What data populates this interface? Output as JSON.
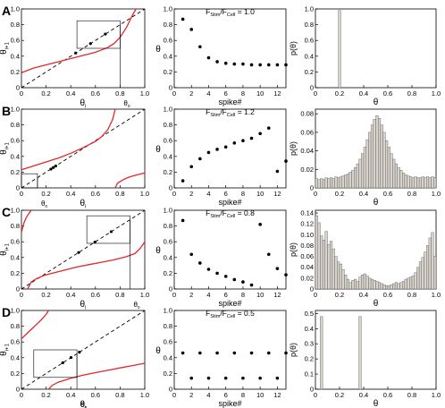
{
  "figure": {
    "rows": [
      {
        "letter": "A",
        "param": "F",
        "param_sub1": "Stim",
        "param_mid": "/F",
        "param_sub2": "Cell",
        "param_value": " = 1.0"
      },
      {
        "letter": "B",
        "param": "F",
        "param_sub1": "Stim",
        "param_mid": "/F",
        "param_sub2": "Cell",
        "param_value": " = 1.2"
      },
      {
        "letter": "C",
        "param": "F",
        "param_sub1": "Stim",
        "param_mid": "/F",
        "param_sub2": "Cell",
        "param_value": " = 0.8"
      },
      {
        "letter": "D",
        "param": "F",
        "param_sub1": "Stim",
        "param_mid": "/F",
        "param_sub2": "Cell",
        "param_value": " = 0.5"
      }
    ],
    "colors": {
      "curve": "#e3262d",
      "bar_fill": "#d8d3cb",
      "axis": "#000000"
    }
  },
  "chart_data": [
    {
      "type": "line",
      "panel": "A-map",
      "ylabel": "θ",
      "ylabel_sub": "i+1",
      "xlabel": "θ",
      "xlabel_sub": "i",
      "xlim": [
        0,
        1
      ],
      "ylim": [
        0,
        1
      ],
      "xticks": [
        "0",
        "0.2",
        "0.4",
        "0.6",
        "0.8",
        "1.0"
      ],
      "yticks": [
        "0",
        "0.2",
        "0.4",
        "0.6",
        "0.8",
        "1.0"
      ],
      "fixed_point_label": "θ",
      "fixed_point_sub": "0",
      "fixed_point": 0.8,
      "curve": {
        "x": [
          0,
          0.05,
          0.1,
          0.15,
          0.2,
          0.25,
          0.3,
          0.35,
          0.4,
          0.45,
          0.5,
          0.55,
          0.6,
          0.65,
          0.7,
          0.75,
          0.8,
          0.85,
          0.9,
          0.93
        ],
        "y": [
          0.19,
          0.22,
          0.25,
          0.27,
          0.29,
          0.31,
          0.33,
          0.35,
          0.37,
          0.39,
          0.41,
          0.43,
          0.45,
          0.48,
          0.51,
          0.56,
          0.64,
          0.76,
          0.92,
          1.0
        ]
      },
      "diagonal": true
    },
    {
      "type": "scatter",
      "panel": "A-series",
      "ylabel": "θ",
      "xlabel": "spike#",
      "xlim": [
        0,
        13
      ],
      "ylim": [
        0,
        1
      ],
      "xticks": [
        "0",
        "2",
        "4",
        "6",
        "8",
        "10",
        "12"
      ],
      "yticks": [
        "0",
        "0.2",
        "0.4",
        "0.6",
        "0.8",
        "1.0"
      ],
      "x": [
        1,
        2,
        3,
        4,
        5,
        6,
        7,
        8,
        9,
        10,
        11,
        12,
        13
      ],
      "y": [
        0.87,
        0.74,
        0.52,
        0.38,
        0.33,
        0.31,
        0.3,
        0.3,
        0.29,
        0.29,
        0.29,
        0.29,
        0.29
      ]
    },
    {
      "type": "bar",
      "panel": "A-hist",
      "ylabel": "p(θ)",
      "xlabel": "θ",
      "xlim": [
        0,
        1
      ],
      "ylim": [
        0,
        1
      ],
      "xticks": [
        "0",
        "0.2",
        "0.4",
        "0.6",
        "0.8",
        "1.0"
      ],
      "yticks": [
        "0",
        "0.2",
        "0.4",
        "0.6",
        "0.8",
        "1.0"
      ],
      "bin_width": 0.02,
      "bins_x": [
        0.2
      ],
      "values": [
        0.98
      ]
    },
    {
      "type": "line",
      "panel": "B-map",
      "ylabel": "θ",
      "ylabel_sub": "i+1",
      "xlabel": "θ",
      "xlabel_sub": "i",
      "xlim": [
        0,
        1
      ],
      "ylim": [
        0,
        1
      ],
      "xticks": [
        "0",
        "0.2",
        "0.4",
        "0.6",
        "0.8",
        "1.0"
      ],
      "yticks": [
        "0",
        "0.2",
        "0.4",
        "0.6",
        "0.8",
        "1.0"
      ],
      "fixed_point_label": "θ",
      "fixed_point_sub": "0",
      "fixed_point": 0.13,
      "curve": {
        "x": [
          0,
          0.1,
          0.2,
          0.3,
          0.4,
          0.5,
          0.6,
          0.65,
          0.7,
          0.74,
          0.76
        ],
        "y": [
          0.23,
          0.28,
          0.33,
          0.38,
          0.44,
          0.51,
          0.59,
          0.65,
          0.74,
          0.87,
          1.0
        ]
      },
      "curve2": {
        "x": [
          0.76,
          0.78,
          0.82,
          0.86,
          0.9,
          0.95,
          1.0
        ],
        "y": [
          0.0,
          0.06,
          0.1,
          0.13,
          0.15,
          0.17,
          0.19
        ]
      },
      "diagonal": true
    },
    {
      "type": "scatter",
      "panel": "B-series",
      "ylabel": "θ",
      "xlabel": "spike#",
      "xlim": [
        0,
        13
      ],
      "ylim": [
        0,
        1
      ],
      "xticks": [
        "0",
        "2",
        "4",
        "6",
        "8",
        "10",
        "12"
      ],
      "yticks": [
        "0",
        "0.2",
        "0.4",
        "0.6",
        "0.8",
        "1.0"
      ],
      "x": [
        1,
        2,
        3,
        4,
        5,
        6,
        7,
        8,
        9,
        10,
        11,
        12,
        13
      ],
      "y": [
        0.09,
        0.27,
        0.37,
        0.45,
        0.49,
        0.52,
        0.57,
        0.6,
        0.63,
        0.69,
        0.76,
        0.21,
        0.34
      ]
    },
    {
      "type": "bar",
      "panel": "B-hist",
      "ylabel": "p(θ)",
      "xlabel": "θ",
      "xlim": [
        0,
        1
      ],
      "ylim": [
        0,
        0.085
      ],
      "xticks": [
        "0",
        "0.2",
        "0.4",
        "0.6",
        "0.8",
        "1.0"
      ],
      "yticks": [
        "0",
        "0.02",
        "0.04",
        "0.06",
        "0.08"
      ],
      "bin_width": 0.02,
      "bins_x": [
        0.01,
        0.03,
        0.05,
        0.07,
        0.09,
        0.11,
        0.13,
        0.15,
        0.17,
        0.19,
        0.21,
        0.23,
        0.25,
        0.27,
        0.29,
        0.31,
        0.33,
        0.35,
        0.37,
        0.39,
        0.41,
        0.43,
        0.45,
        0.47,
        0.49,
        0.51,
        0.53,
        0.55,
        0.57,
        0.59,
        0.61,
        0.63,
        0.65,
        0.67,
        0.69,
        0.71,
        0.73,
        0.75,
        0.77,
        0.79,
        0.81,
        0.83,
        0.85,
        0.87,
        0.89,
        0.91,
        0.93,
        0.95,
        0.97,
        0.99
      ],
      "values": [
        0.01,
        0.009,
        0.01,
        0.009,
        0.011,
        0.01,
        0.011,
        0.01,
        0.012,
        0.011,
        0.012,
        0.013,
        0.014,
        0.015,
        0.017,
        0.019,
        0.022,
        0.026,
        0.031,
        0.037,
        0.044,
        0.052,
        0.06,
        0.068,
        0.074,
        0.078,
        0.075,
        0.068,
        0.06,
        0.051,
        0.044,
        0.037,
        0.031,
        0.026,
        0.022,
        0.019,
        0.016,
        0.014,
        0.013,
        0.012,
        0.011,
        0.012,
        0.011,
        0.011,
        0.012,
        0.011,
        0.012,
        0.011,
        0.012,
        0.011
      ]
    },
    {
      "type": "line",
      "panel": "C-map",
      "ylabel": "θ",
      "ylabel_sub": "i+1",
      "xlabel": "θ",
      "xlabel_sub": "i",
      "xlim": [
        0,
        1
      ],
      "ylim": [
        0,
        1
      ],
      "xticks": [
        "0",
        "0.2",
        "0.4",
        "0.6",
        "0.8",
        "1.0"
      ],
      "yticks": [
        "0",
        "0.2",
        "0.4",
        "0.6",
        "0.8",
        "1.0"
      ],
      "fixed_point_label": "θ",
      "fixed_point_sub": "0",
      "fixed_point": 0.88,
      "curve": {
        "x": [
          0.0,
          0.02,
          0.04,
          0.06,
          0.08
        ],
        "y": [
          0.72,
          0.84,
          0.91,
          0.96,
          1.0
        ]
      },
      "curve2": {
        "x": [
          0.05,
          0.08,
          0.12,
          0.18,
          0.25,
          0.35,
          0.45,
          0.55,
          0.65,
          0.75,
          0.85,
          0.92,
          0.96,
          1.0
        ],
        "y": [
          0.0,
          0.09,
          0.13,
          0.17,
          0.2,
          0.24,
          0.28,
          0.31,
          0.34,
          0.37,
          0.41,
          0.45,
          0.51,
          0.6
        ]
      },
      "diagonal": true
    },
    {
      "type": "scatter",
      "panel": "C-series",
      "ylabel": "θ",
      "xlabel": "spike#",
      "xlim": [
        0,
        13
      ],
      "ylim": [
        0,
        1
      ],
      "xticks": [
        "0",
        "2",
        "4",
        "6",
        "8",
        "10",
        "12"
      ],
      "yticks": [
        "0",
        "0.2",
        "0.4",
        "0.6",
        "0.8",
        "1.0"
      ],
      "x": [
        1,
        2,
        3,
        4,
        5,
        6,
        7,
        8,
        9,
        10,
        11,
        12,
        13
      ],
      "y": [
        0.87,
        0.44,
        0.33,
        0.25,
        0.2,
        0.16,
        0.12,
        0.09,
        0.05,
        0.82,
        0.44,
        0.26,
        0.18
      ]
    },
    {
      "type": "bar",
      "panel": "C-hist",
      "ylabel": "p(θ)",
      "xlabel": "θ",
      "xlim": [
        0,
        1
      ],
      "ylim": [
        0,
        0.145
      ],
      "xticks": [
        "0",
        "0.2",
        "0.4",
        "0.6",
        "0.8",
        "1.0"
      ],
      "yticks": [
        "0",
        "0.02",
        "0.04",
        "0.06",
        "0.08",
        "0.10",
        "0.12",
        "0.14"
      ],
      "bin_width": 0.02,
      "bins_x": [
        0.01,
        0.03,
        0.05,
        0.07,
        0.09,
        0.11,
        0.13,
        0.15,
        0.17,
        0.19,
        0.21,
        0.23,
        0.25,
        0.27,
        0.29,
        0.31,
        0.33,
        0.35,
        0.37,
        0.39,
        0.41,
        0.43,
        0.45,
        0.47,
        0.49,
        0.51,
        0.53,
        0.55,
        0.57,
        0.59,
        0.61,
        0.63,
        0.65,
        0.67,
        0.69,
        0.71,
        0.73,
        0.75,
        0.77,
        0.79,
        0.81,
        0.83,
        0.85,
        0.87,
        0.89,
        0.91,
        0.93,
        0.95,
        0.97,
        0.99
      ],
      "values": [
        0.135,
        0.122,
        0.098,
        0.09,
        0.106,
        0.082,
        0.088,
        0.074,
        0.06,
        0.05,
        0.046,
        0.036,
        0.026,
        0.018,
        0.012,
        0.016,
        0.018,
        0.014,
        0.022,
        0.026,
        0.028,
        0.024,
        0.02,
        0.018,
        0.016,
        0.014,
        0.012,
        0.01,
        0.008,
        0.006,
        0.006,
        0.008,
        0.01,
        0.012,
        0.01,
        0.012,
        0.014,
        0.018,
        0.02,
        0.022,
        0.024,
        0.03,
        0.04,
        0.05,
        0.058,
        0.068,
        0.08,
        0.094,
        0.104,
        0.06
      ]
    },
    {
      "type": "line",
      "panel": "D-map",
      "ylabel": "θ",
      "ylabel_sub": "i+1",
      "xlabel": "θ",
      "xlabel_sub": "i",
      "xlim": [
        0,
        1
      ],
      "ylim": [
        0,
        1
      ],
      "xticks": [
        "0",
        "0.2",
        "0.4",
        "0.6",
        "0.8",
        "1.0"
      ],
      "yticks": [
        "0",
        "0.2",
        "0.4",
        "0.6",
        "0.8",
        "1.0"
      ],
      "fixed_point_label": "θ",
      "fixed_point_sub": "0",
      "fixed_point": 0.45,
      "curve": {
        "x": [
          0.0,
          0.04,
          0.08,
          0.12,
          0.16,
          0.2,
          0.22
        ],
        "y": [
          0.64,
          0.7,
          0.76,
          0.82,
          0.88,
          0.95,
          1.0
        ]
      },
      "curve2": {
        "x": [
          0.22,
          0.25,
          0.3,
          0.4,
          0.5,
          0.6,
          0.7,
          0.8,
          0.9,
          1.0
        ],
        "y": [
          0.0,
          0.05,
          0.09,
          0.14,
          0.18,
          0.21,
          0.24,
          0.27,
          0.3,
          0.33
        ]
      },
      "diagonal": true
    },
    {
      "type": "scatter",
      "panel": "D-series",
      "ylabel": "θ",
      "xlabel": "spike#",
      "xlim": [
        0,
        13
      ],
      "ylim": [
        0,
        1
      ],
      "xticks": [
        "0",
        "2",
        "4",
        "6",
        "8",
        "10",
        "12"
      ],
      "yticks": [
        "0",
        "0.2",
        "0.4",
        "0.6",
        "0.8",
        "1.0"
      ],
      "x": [
        1,
        2,
        3,
        4,
        5,
        6,
        7,
        8,
        9,
        10,
        11,
        12,
        13
      ],
      "y": [
        0.46,
        0.14,
        0.46,
        0.14,
        0.46,
        0.14,
        0.46,
        0.14,
        0.46,
        0.14,
        0.46,
        0.14,
        0.46
      ]
    },
    {
      "type": "bar",
      "panel": "D-hist",
      "ylabel": "p(θ)",
      "xlabel": "θ",
      "xlim": [
        0,
        1
      ],
      "ylim": [
        0,
        0.52
      ],
      "xticks": [
        "0",
        "0.2",
        "0.4",
        "0.6",
        "0.8",
        "1.0"
      ],
      "yticks": [
        "0",
        "0.1",
        "0.2",
        "0.3",
        "0.4",
        "0.5"
      ],
      "bin_width": 0.02,
      "bins_x": [
        0.05,
        0.37
      ],
      "values": [
        0.48,
        0.48
      ]
    }
  ]
}
